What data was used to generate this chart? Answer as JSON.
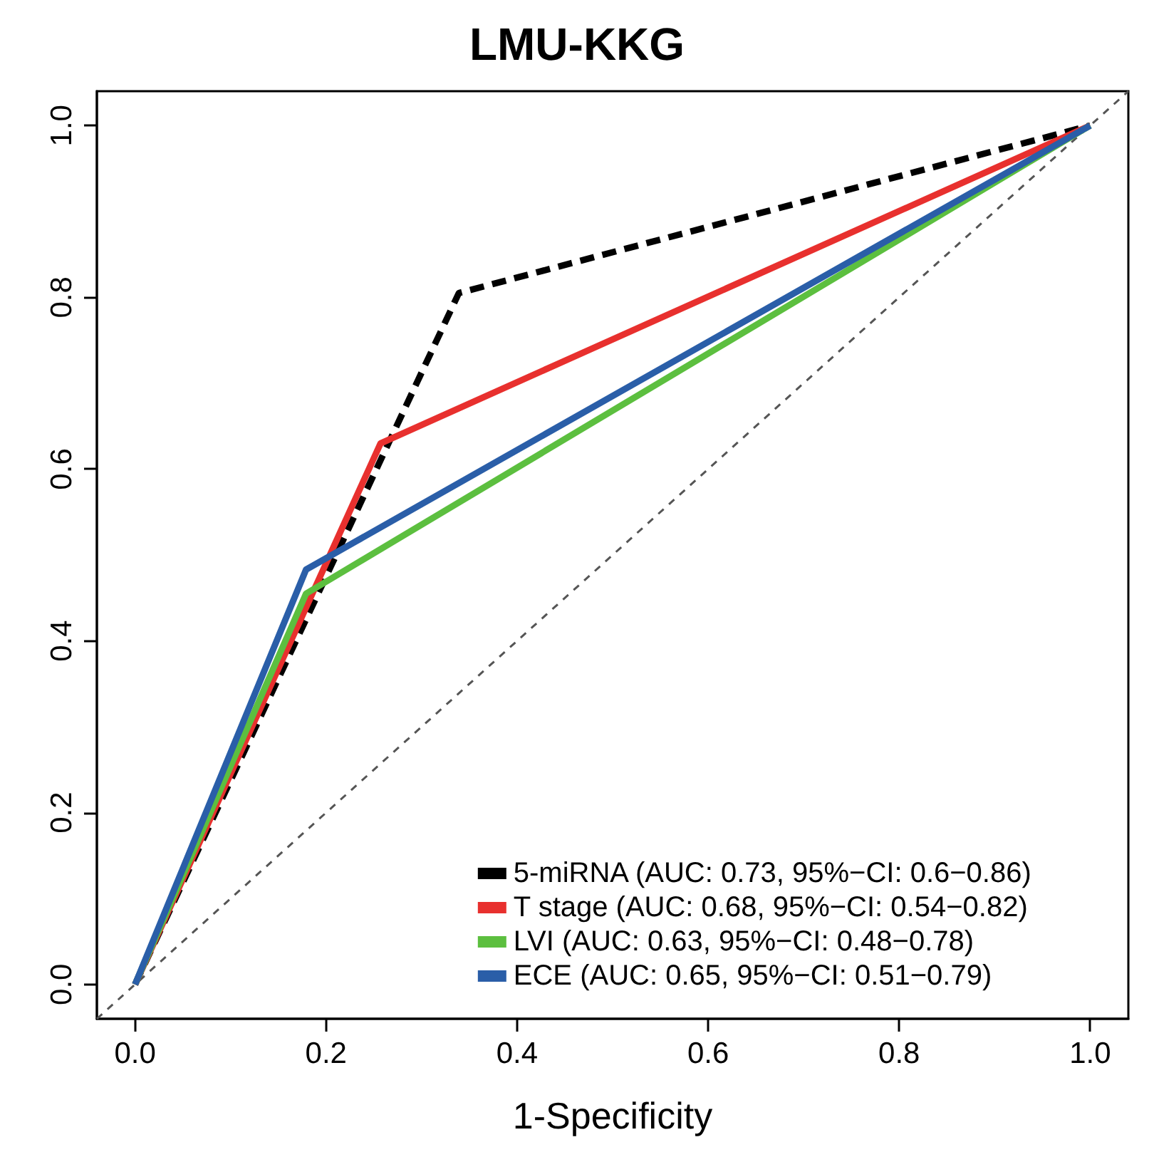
{
  "chart_data": {
    "type": "line",
    "title": "LMU-KKG",
    "xlabel": "1-Specificity",
    "xlim": [
      -0.04,
      1.04
    ],
    "ylim": [
      -0.04,
      1.04
    ],
    "xticks": [
      {
        "value": 0,
        "label": "0.0"
      },
      {
        "value": 0.2,
        "label": "0.2"
      },
      {
        "value": 0.4,
        "label": "0.4"
      },
      {
        "value": 0.6,
        "label": "0.6"
      },
      {
        "value": 0.8,
        "label": "0.8"
      },
      {
        "value": 1,
        "label": "1.0"
      }
    ],
    "yticks": [
      {
        "value": 0,
        "label": "0.0"
      },
      {
        "value": 0.2,
        "label": "0.2"
      },
      {
        "value": 0.4,
        "label": "0.4"
      },
      {
        "value": 0.6,
        "label": "0.6"
      },
      {
        "value": 0.8,
        "label": "0.8"
      },
      {
        "value": 1,
        "label": "1.0"
      }
    ],
    "grid": false,
    "legend": "bottom right",
    "marker": "none",
    "series": [
      {
        "name": "5-miRNA (AUC: 0.73, 95%−CI: 0.6−0.86)",
        "color": "#000000",
        "line_style": "dashed",
        "x": [
          0,
          0.339,
          1
        ],
        "values": [
          0,
          0.805,
          1
        ]
      },
      {
        "name": "T stage (AUC: 0.68, 95%−CI: 0.54−0.82)",
        "color": "#e8302e",
        "line_style": "solid",
        "x": [
          0,
          0.257,
          1
        ],
        "values": [
          0,
          0.63,
          1
        ]
      },
      {
        "name": "LVI (AUC: 0.63, 95%−CI: 0.48−0.78)",
        "color": "#5cbf3f",
        "line_style": "solid",
        "x": [
          0,
          0.179,
          1
        ],
        "values": [
          0,
          0.455,
          1
        ]
      },
      {
        "name": "ECE (AUC: 0.65, 95%−CI: 0.51−0.79)",
        "color": "#2a5ea8",
        "line_style": "solid",
        "x": [
          0,
          0.179,
          1
        ],
        "values": [
          0,
          0.483,
          1
        ]
      },
      {
        "color": "#555555",
        "line_style": "dashed",
        "x": [
          -0.04,
          1.04
        ],
        "values": [
          -0.04,
          1.04
        ]
      }
    ]
  }
}
